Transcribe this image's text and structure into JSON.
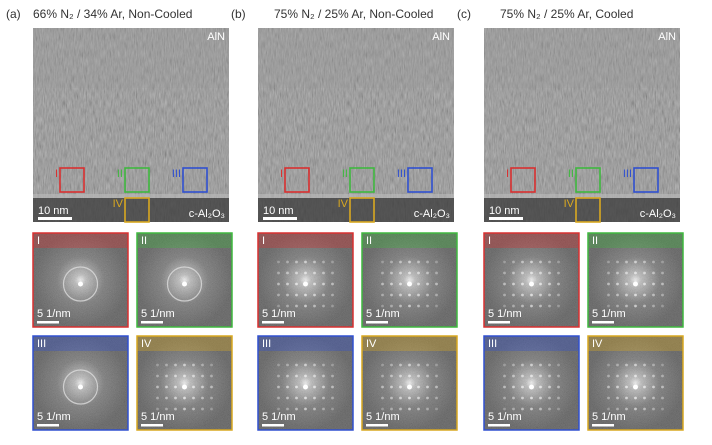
{
  "panels": [
    {
      "label": "(a)",
      "title": "66% N₂ / 34% Ar, Non-Cooled",
      "image": {
        "top_label": "AlN",
        "substrate_label": "c-Al₂O₃",
        "scale_bar": "10 nm",
        "regions": [
          "I",
          "II",
          "III",
          "IV"
        ]
      },
      "ffts": [
        {
          "label": "I",
          "scale_bar": "5 1/nm"
        },
        {
          "label": "II",
          "scale_bar": "5 1/nm"
        },
        {
          "label": "III",
          "scale_bar": "5 1/nm"
        },
        {
          "label": "IV",
          "scale_bar": "5 1/nm"
        }
      ]
    },
    {
      "label": "(b)",
      "title": "75% N₂ / 25% Ar, Non-Cooled",
      "image": {
        "top_label": "AlN",
        "substrate_label": "c-Al₂O₃",
        "scale_bar": "10 nm",
        "regions": [
          "I",
          "II",
          "III",
          "IV"
        ]
      },
      "ffts": [
        {
          "label": "I",
          "scale_bar": "5 1/nm"
        },
        {
          "label": "II",
          "scale_bar": "5 1/nm"
        },
        {
          "label": "III",
          "scale_bar": "5 1/nm"
        },
        {
          "label": "IV",
          "scale_bar": "5 1/nm"
        }
      ]
    },
    {
      "label": "(c)",
      "title": "75% N₂ / 25% Ar, Cooled",
      "image": {
        "top_label": "AlN",
        "substrate_label": "c-Al₂O₃",
        "scale_bar": "10 nm",
        "regions": [
          "I",
          "II",
          "III",
          "IV"
        ]
      },
      "ffts": [
        {
          "label": "I",
          "scale_bar": "5 1/nm"
        },
        {
          "label": "II",
          "scale_bar": "5 1/nm"
        },
        {
          "label": "III",
          "scale_bar": "5 1/nm"
        },
        {
          "label": "IV",
          "scale_bar": "5 1/nm"
        }
      ]
    }
  ]
}
